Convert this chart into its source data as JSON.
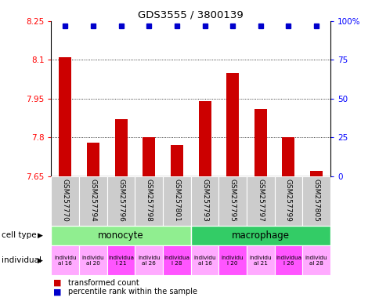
{
  "title": "GDS3555 / 3800139",
  "samples": [
    "GSM257770",
    "GSM257794",
    "GSM257796",
    "GSM257798",
    "GSM257801",
    "GSM257793",
    "GSM257795",
    "GSM257797",
    "GSM257799",
    "GSM257805"
  ],
  "transformed_counts": [
    8.11,
    7.78,
    7.87,
    7.8,
    7.77,
    7.94,
    8.05,
    7.91,
    7.8,
    7.67
  ],
  "percentile_ranks": [
    97,
    97,
    97,
    97,
    97,
    97,
    97,
    97,
    97,
    97
  ],
  "bar_color": "#cc0000",
  "dot_color": "#0000cc",
  "ylim_left": [
    7.65,
    8.25
  ],
  "ylim_right": [
    0,
    100
  ],
  "yticks_left": [
    7.65,
    7.8,
    7.95,
    8.1,
    8.25
  ],
  "yticks_right": [
    0,
    25,
    50,
    75,
    100
  ],
  "ytick_labels_left": [
    "7.65",
    "7.8",
    "7.95",
    "8.1",
    "8.25"
  ],
  "ytick_labels_right": [
    "0",
    "25",
    "50",
    "75",
    "100%"
  ],
  "cell_type_colors": {
    "monocyte": "#90ee90",
    "macrophage": "#33cc66"
  },
  "individual_colors": [
    "#ffaaff",
    "#ffaaff",
    "#ff55ff",
    "#ffaaff",
    "#ff55ff",
    "#ffaaff",
    "#ff55ff",
    "#ffaaff",
    "#ff55ff",
    "#ffaaff"
  ],
  "individual_display": [
    "individu\nal 16",
    "individu\nal 20",
    "individua\nl 21",
    "individu\nal 26",
    "individua\nl 28",
    "individu\nal 16",
    "individu\nl 20",
    "individu\nal 21",
    "individua\nl 26",
    "individu\nal 28"
  ],
  "bar_baseline": 7.65,
  "header_bg": "#cccccc"
}
